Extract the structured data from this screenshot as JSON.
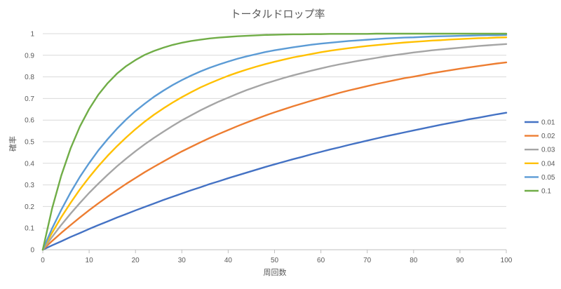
{
  "chart_data": {
    "type": "line",
    "title": "トータルドロップ率",
    "xlabel": "周回数",
    "ylabel": "確率",
    "xlim": [
      0,
      100
    ],
    "ylim": [
      0,
      1
    ],
    "x_ticks": [
      0,
      10,
      20,
      30,
      40,
      50,
      60,
      70,
      80,
      90,
      100
    ],
    "y_ticks": [
      0,
      0.1,
      0.2,
      0.3,
      0.4,
      0.5,
      0.6,
      0.7,
      0.8,
      0.9,
      1
    ],
    "x_tick_labels": [
      "0",
      "10",
      "20",
      "30",
      "40",
      "50",
      "60",
      "70",
      "80",
      "90",
      "100"
    ],
    "y_tick_labels": [
      "0",
      "0.1",
      "0.2",
      "0.3",
      "0.4",
      "0.5",
      "0.6",
      "0.7",
      "0.8",
      "0.9",
      "1"
    ],
    "grid": "horizontal",
    "legend_position": "right",
    "x": [
      0,
      2,
      4,
      6,
      8,
      10,
      12,
      14,
      16,
      18,
      20,
      22,
      24,
      26,
      28,
      30,
      32,
      34,
      36,
      38,
      40,
      42,
      44,
      46,
      48,
      50,
      52,
      54,
      56,
      58,
      60,
      62,
      64,
      66,
      68,
      70,
      72,
      74,
      76,
      78,
      80,
      82,
      84,
      86,
      88,
      90,
      92,
      94,
      96,
      98,
      100
    ],
    "series": [
      {
        "name": "0.01",
        "color": "#4472C4",
        "values": [
          0,
          0.02,
          0.039,
          0.059,
          0.077,
          0.096,
          0.114,
          0.131,
          0.149,
          0.165,
          0.182,
          0.198,
          0.214,
          0.23,
          0.245,
          0.26,
          0.275,
          0.289,
          0.304,
          0.317,
          0.331,
          0.344,
          0.357,
          0.37,
          0.383,
          0.395,
          0.407,
          0.419,
          0.43,
          0.442,
          0.453,
          0.464,
          0.474,
          0.485,
          0.495,
          0.505,
          0.515,
          0.525,
          0.534,
          0.543,
          0.552,
          0.561,
          0.57,
          0.579,
          0.587,
          0.595,
          0.604,
          0.611,
          0.619,
          0.627,
          0.634
        ]
      },
      {
        "name": "0.02",
        "color": "#ED7D31",
        "values": [
          0,
          0.04,
          0.078,
          0.114,
          0.149,
          0.183,
          0.215,
          0.246,
          0.276,
          0.305,
          0.332,
          0.359,
          0.384,
          0.408,
          0.432,
          0.455,
          0.476,
          0.497,
          0.517,
          0.536,
          0.554,
          0.572,
          0.589,
          0.605,
          0.621,
          0.636,
          0.65,
          0.664,
          0.677,
          0.69,
          0.702,
          0.714,
          0.726,
          0.737,
          0.747,
          0.757,
          0.767,
          0.776,
          0.785,
          0.794,
          0.801,
          0.809,
          0.817,
          0.824,
          0.831,
          0.838,
          0.844,
          0.85,
          0.856,
          0.862,
          0.867
        ]
      },
      {
        "name": "0.03",
        "color": "#A5A5A5",
        "values": [
          0,
          0.059,
          0.115,
          0.167,
          0.216,
          0.263,
          0.306,
          0.347,
          0.386,
          0.422,
          0.456,
          0.488,
          0.518,
          0.546,
          0.573,
          0.599,
          0.622,
          0.645,
          0.666,
          0.686,
          0.704,
          0.722,
          0.739,
          0.754,
          0.769,
          0.782,
          0.795,
          0.807,
          0.818,
          0.829,
          0.839,
          0.849,
          0.858,
          0.866,
          0.874,
          0.881,
          0.888,
          0.895,
          0.901,
          0.907,
          0.913,
          0.918,
          0.923,
          0.927,
          0.931,
          0.935,
          0.939,
          0.943,
          0.946,
          0.949,
          0.952
        ]
      },
      {
        "name": "0.04",
        "color": "#FFC000",
        "values": [
          0,
          0.078,
          0.151,
          0.217,
          0.279,
          0.335,
          0.387,
          0.435,
          0.479,
          0.52,
          0.558,
          0.593,
          0.625,
          0.654,
          0.681,
          0.706,
          0.729,
          0.751,
          0.77,
          0.788,
          0.805,
          0.82,
          0.834,
          0.847,
          0.859,
          0.87,
          0.88,
          0.89,
          0.898,
          0.906,
          0.914,
          0.921,
          0.927,
          0.933,
          0.938,
          0.943,
          0.947,
          0.951,
          0.955,
          0.959,
          0.962,
          0.965,
          0.968,
          0.97,
          0.973,
          0.975,
          0.977,
          0.979,
          0.98,
          0.982,
          0.983
        ]
      },
      {
        "name": "0.05",
        "color": "#5B9BD5",
        "values": [
          0,
          0.098,
          0.185,
          0.265,
          0.337,
          0.401,
          0.46,
          0.512,
          0.56,
          0.603,
          0.642,
          0.676,
          0.708,
          0.736,
          0.762,
          0.785,
          0.806,
          0.825,
          0.842,
          0.857,
          0.871,
          0.884,
          0.895,
          0.905,
          0.915,
          0.923,
          0.93,
          0.937,
          0.943,
          0.949,
          0.954,
          0.958,
          0.962,
          0.966,
          0.969,
          0.972,
          0.975,
          0.978,
          0.98,
          0.982,
          0.983,
          0.985,
          0.987,
          0.988,
          0.989,
          0.99,
          0.991,
          0.992,
          0.993,
          0.993,
          0.994
        ]
      },
      {
        "name": "0.1",
        "color": "#70AD47",
        "values": [
          0,
          0.19,
          0.344,
          0.469,
          0.57,
          0.651,
          0.718,
          0.771,
          0.815,
          0.85,
          0.878,
          0.902,
          0.92,
          0.935,
          0.948,
          0.958,
          0.966,
          0.972,
          0.978,
          0.982,
          0.985,
          0.988,
          0.99,
          0.992,
          0.994,
          0.995,
          0.996,
          0.997,
          0.997,
          0.998,
          0.998,
          0.999,
          0.999,
          0.999,
          0.999,
          0.999,
          1.0,
          1.0,
          1.0,
          1.0,
          1.0,
          1.0,
          1.0,
          1.0,
          1.0,
          1.0,
          1.0,
          1.0,
          1.0,
          1.0,
          1.0
        ]
      }
    ]
  }
}
